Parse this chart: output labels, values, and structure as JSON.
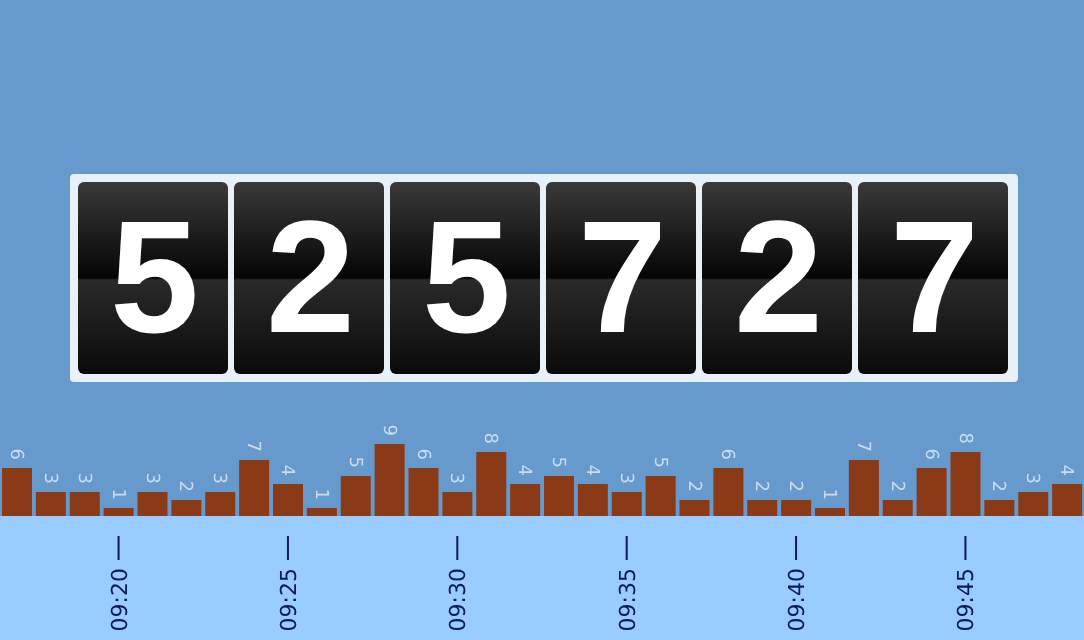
{
  "chart_data": {
    "type": "bar",
    "categories": [
      null,
      null,
      null,
      "09:20",
      null,
      null,
      null,
      null,
      "09:25",
      null,
      null,
      null,
      null,
      "09:30",
      null,
      null,
      null,
      null,
      "09:35",
      null,
      null,
      null,
      null,
      "09:40",
      null,
      null,
      null,
      null,
      "09:45",
      null,
      null,
      null
    ],
    "values": [
      6,
      3,
      3,
      1,
      3,
      2,
      3,
      7,
      4,
      1,
      5,
      9,
      6,
      3,
      8,
      4,
      5,
      4,
      3,
      5,
      2,
      6,
      2,
      2,
      1,
      7,
      2,
      6,
      8,
      2,
      3,
      4
    ],
    "color": "#8b3a18",
    "data_labels": true,
    "annotations": [
      "525727"
    ]
  }
}
